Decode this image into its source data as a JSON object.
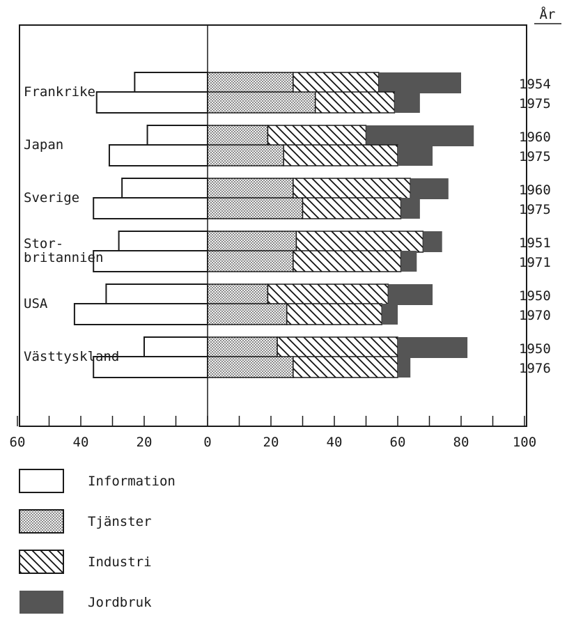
{
  "chart_data": {
    "type": "bar",
    "orientation": "horizontal",
    "stacked": true,
    "year_header": "År",
    "x_ticks_left": [
      "60",
      "40",
      "20"
    ],
    "x_ticks_right": [
      "0",
      "20",
      "40",
      "60",
      "80",
      "100"
    ],
    "left_axis_range": [
      0,
      60
    ],
    "right_axis_range": [
      0,
      100
    ],
    "series": [
      {
        "name": "Information",
        "side": "left",
        "fill": "white"
      },
      {
        "name": "Tjänster",
        "side": "right",
        "fill": "dotted"
      },
      {
        "name": "Industri",
        "side": "right",
        "fill": "hatched"
      },
      {
        "name": "Jordbruk",
        "side": "right",
        "fill": "solid"
      }
    ],
    "countries": [
      {
        "label_lines": [
          "Frankrike"
        ],
        "rows": [
          {
            "year": "1954",
            "information": 23,
            "tjanster": 27,
            "industri": 27,
            "jordbruk": 26
          },
          {
            "year": "1975",
            "information": 35,
            "tjanster": 34,
            "industri": 25,
            "jordbruk": 8
          }
        ]
      },
      {
        "label_lines": [
          "Japan"
        ],
        "rows": [
          {
            "year": "1960",
            "information": 19,
            "tjanster": 19,
            "industri": 31,
            "jordbruk": 34
          },
          {
            "year": "1975",
            "information": 31,
            "tjanster": 24,
            "industri": 36,
            "jordbruk": 11
          }
        ]
      },
      {
        "label_lines": [
          "Sverige"
        ],
        "rows": [
          {
            "year": "1960",
            "information": 27,
            "tjanster": 27,
            "industri": 37,
            "jordbruk": 12
          },
          {
            "year": "1975",
            "information": 36,
            "tjanster": 30,
            "industri": 31,
            "jordbruk": 6
          }
        ]
      },
      {
        "label_lines": [
          "Stor-",
          "britannien"
        ],
        "rows": [
          {
            "year": "1951",
            "information": 28,
            "tjanster": 28,
            "industri": 40,
            "jordbruk": 6
          },
          {
            "year": "1971",
            "information": 36,
            "tjanster": 27,
            "industri": 34,
            "jordbruk": 5
          }
        ]
      },
      {
        "label_lines": [
          "USA"
        ],
        "rows": [
          {
            "year": "1950",
            "information": 32,
            "tjanster": 19,
            "industri": 38,
            "jordbruk": 14
          },
          {
            "year": "1970",
            "information": 42,
            "tjanster": 25,
            "industri": 30,
            "jordbruk": 5
          }
        ]
      },
      {
        "label_lines": [
          "Västtyskland"
        ],
        "rows": [
          {
            "year": "1950",
            "information": 20,
            "tjanster": 22,
            "industri": 38,
            "jordbruk": 22
          },
          {
            "year": "1976",
            "information": 36,
            "tjanster": 27,
            "industri": 33,
            "jordbruk": 4
          }
        ]
      }
    ]
  }
}
